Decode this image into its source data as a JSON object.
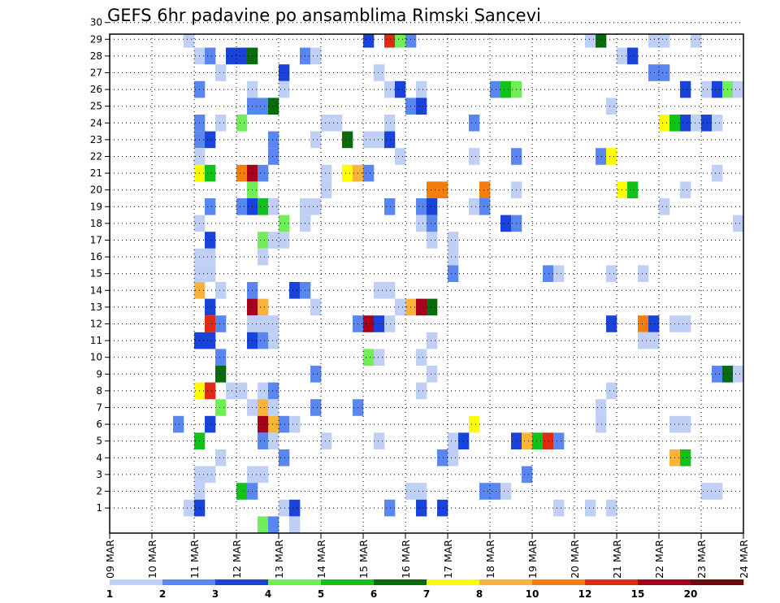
{
  "chart_data": {
    "type": "heatmap",
    "title": "GEFS 6hr padavine po ansamblima Rimski Sancevi",
    "x_ticks": [
      "09 MAR",
      "10 MAR",
      "11 MAR",
      "12 MAR",
      "13 MAR",
      "14 MAR",
      "15 MAR",
      "16 MAR",
      "17 MAR",
      "18 MAR",
      "19 MAR",
      "20 MAR",
      "21 MAR",
      "22 MAR",
      "23 MAR",
      "24 MAR"
    ],
    "y_ticks": [
      "1",
      "2",
      "3",
      "4",
      "5",
      "6",
      "7",
      "8",
      "9",
      "10",
      "11",
      "12",
      "13",
      "14",
      "15",
      "16",
      "17",
      "18",
      "19",
      "20",
      "21",
      "22",
      "23",
      "24",
      "25",
      "26",
      "27",
      "28",
      "29",
      "30"
    ],
    "x_steps_per_day": 4,
    "xlim": [
      0,
      60
    ],
    "ylim": [
      0,
      30
    ],
    "grid": true,
    "colorbar": {
      "labels": [
        "1",
        "2",
        "3",
        "4",
        "5",
        "6",
        "7",
        "8",
        "10",
        "12",
        "15",
        "20"
      ],
      "colors": [
        "#bfcff5",
        "#5a87ef",
        "#1a43d9",
        "#70ee58",
        "#11c21a",
        "#0a6b0d",
        "#fefe00",
        "#fbb33c",
        "#f47d0c",
        "#e02b14",
        "#a8001c",
        "#6b0a0a"
      ]
    },
    "cells": [
      {
        "m": 30,
        "t": [
          [
            9,
            7
          ],
          [
            45,
            2
          ],
          [
            46,
            6
          ],
          [
            47,
            1
          ],
          [
            48,
            2
          ],
          [
            49,
            2
          ],
          [
            50,
            4
          ],
          [
            51,
            5
          ],
          [
            52,
            3
          ],
          [
            53,
            2
          ],
          [
            54,
            1
          ],
          [
            55,
            1
          ]
        ]
      },
      {
        "m": 29,
        "t": [
          [
            7,
            1
          ],
          [
            24,
            3
          ],
          [
            26,
            10
          ],
          [
            27,
            4
          ],
          [
            28,
            2
          ],
          [
            45,
            1
          ],
          [
            46,
            6
          ],
          [
            51,
            1
          ],
          [
            52,
            1
          ]
        ],
        "extra": [
          [
            55,
            1
          ]
        ]
      },
      {
        "m": 28,
        "t": [
          [
            8,
            1
          ],
          [
            9,
            2
          ],
          [
            11,
            3
          ],
          [
            12,
            3
          ],
          [
            13,
            6
          ],
          [
            18,
            2
          ],
          [
            19,
            1
          ],
          [
            48,
            1
          ],
          [
            49,
            3
          ]
        ]
      },
      {
        "m": 27,
        "t": [
          [
            10,
            1
          ],
          [
            16,
            3
          ],
          [
            25,
            1
          ],
          [
            51,
            2
          ],
          [
            52,
            2
          ]
        ]
      },
      {
        "m": 26,
        "t": [
          [
            8,
            2
          ],
          [
            13,
            1
          ],
          [
            16,
            1
          ],
          [
            26,
            1
          ],
          [
            27,
            3
          ],
          [
            29,
            1
          ],
          [
            36,
            2
          ],
          [
            37,
            5
          ],
          [
            38,
            4
          ],
          [
            54,
            3
          ],
          [
            56,
            1
          ],
          [
            57,
            3
          ],
          [
            58,
            4
          ],
          [
            59,
            1
          ]
        ]
      },
      {
        "m": 25,
        "t": [
          [
            13,
            2
          ],
          [
            14,
            2
          ],
          [
            15,
            6
          ],
          [
            28,
            2
          ],
          [
            29,
            3
          ],
          [
            47,
            1
          ]
        ]
      },
      {
        "m": 24,
        "t": [
          [
            8,
            2
          ],
          [
            10,
            1
          ],
          [
            12,
            4
          ],
          [
            20,
            1
          ],
          [
            21,
            1
          ],
          [
            26,
            1
          ],
          [
            34,
            2
          ],
          [
            52,
            7
          ],
          [
            53,
            5
          ],
          [
            54,
            3
          ],
          [
            55,
            1
          ],
          [
            56,
            3
          ],
          [
            57,
            1
          ]
        ]
      },
      {
        "m": 23,
        "t": [
          [
            8,
            2
          ],
          [
            9,
            3
          ],
          [
            15,
            2
          ],
          [
            19,
            1
          ],
          [
            22,
            6
          ],
          [
            24,
            1
          ],
          [
            25,
            1
          ],
          [
            26,
            3
          ]
        ]
      },
      {
        "m": 22,
        "t": [
          [
            8,
            1
          ],
          [
            15,
            2
          ],
          [
            27,
            1
          ],
          [
            34,
            1
          ],
          [
            38,
            2
          ],
          [
            46,
            2
          ],
          [
            47,
            7
          ]
        ]
      },
      {
        "m": 21,
        "t": [
          [
            8,
            7
          ],
          [
            9,
            5
          ],
          [
            12,
            9
          ],
          [
            13,
            11
          ],
          [
            14,
            2
          ],
          [
            20,
            1
          ],
          [
            22,
            7
          ],
          [
            23,
            8
          ],
          [
            24,
            2
          ],
          [
            57,
            1
          ]
        ]
      },
      {
        "m": 20,
        "t": [
          [
            13,
            4
          ],
          [
            20,
            1
          ],
          [
            30,
            9
          ],
          [
            31,
            9
          ],
          [
            35,
            9
          ],
          [
            38,
            1
          ],
          [
            48,
            7
          ],
          [
            49,
            5
          ],
          [
            54,
            1
          ]
        ]
      },
      {
        "m": 19,
        "t": [
          [
            9,
            2
          ],
          [
            12,
            2
          ],
          [
            13,
            3
          ],
          [
            14,
            5
          ],
          [
            15,
            1
          ],
          [
            18,
            1
          ],
          [
            19,
            1
          ],
          [
            26,
            2
          ],
          [
            29,
            2
          ],
          [
            30,
            3
          ],
          [
            34,
            1
          ],
          [
            35,
            2
          ],
          [
            52,
            1
          ]
        ]
      },
      {
        "m": 18,
        "t": [
          [
            8,
            1
          ],
          [
            16,
            4
          ],
          [
            18,
            1
          ],
          [
            29,
            1
          ],
          [
            30,
            2
          ],
          [
            37,
            3
          ],
          [
            38,
            2
          ],
          [
            59,
            1
          ]
        ]
      },
      {
        "m": 17,
        "t": [
          [
            9,
            3
          ],
          [
            14,
            4
          ],
          [
            15,
            1
          ],
          [
            16,
            1
          ],
          [
            30,
            1
          ],
          [
            32,
            1
          ]
        ]
      },
      {
        "m": 16,
        "t": [
          [
            8,
            1
          ],
          [
            9,
            1
          ],
          [
            14,
            1
          ],
          [
            32,
            1
          ]
        ]
      },
      {
        "m": 15,
        "t": [
          [
            8,
            1
          ],
          [
            9,
            1
          ],
          [
            32,
            2
          ],
          [
            41,
            2
          ],
          [
            42,
            1
          ],
          [
            47,
            1
          ],
          [
            50,
            1
          ]
        ]
      },
      {
        "m": 14,
        "t": [
          [
            8,
            8
          ],
          [
            10,
            1
          ],
          [
            13,
            2
          ],
          [
            17,
            3
          ],
          [
            18,
            2
          ],
          [
            25,
            1
          ],
          [
            26,
            1
          ]
        ]
      },
      {
        "m": 13,
        "t": [
          [
            9,
            3
          ],
          [
            13,
            11
          ],
          [
            14,
            8
          ],
          [
            19,
            1
          ],
          [
            27,
            1
          ],
          [
            28,
            8
          ],
          [
            29,
            11
          ],
          [
            30,
            6
          ]
        ]
      },
      {
        "m": 12,
        "t": [
          [
            9,
            10
          ],
          [
            10,
            2
          ],
          [
            13,
            1
          ],
          [
            14,
            1
          ],
          [
            15,
            1
          ],
          [
            23,
            2
          ],
          [
            24,
            11
          ],
          [
            25,
            3
          ],
          [
            26,
            1
          ],
          [
            47,
            3
          ],
          [
            50,
            9
          ],
          [
            51,
            3
          ],
          [
            53,
            1
          ],
          [
            54,
            1
          ]
        ]
      },
      {
        "m": 11,
        "t": [
          [
            8,
            3
          ],
          [
            9,
            3
          ],
          [
            13,
            3
          ],
          [
            14,
            2
          ],
          [
            15,
            1
          ],
          [
            30,
            1
          ],
          [
            50,
            1
          ],
          [
            51,
            1
          ]
        ]
      },
      {
        "m": 10,
        "t": [
          [
            10,
            2
          ],
          [
            24,
            4
          ],
          [
            25,
            1
          ],
          [
            29,
            1
          ]
        ]
      },
      {
        "m": 9,
        "t": [
          [
            10,
            6
          ],
          [
            19,
            2
          ],
          [
            30,
            1
          ],
          [
            57,
            2
          ],
          [
            58,
            6
          ],
          [
            59,
            1
          ],
          [
            60,
            1
          ]
        ]
      },
      {
        "m": 8,
        "t": [
          [
            8,
            7
          ],
          [
            9,
            10
          ],
          [
            11,
            1
          ],
          [
            12,
            1
          ],
          [
            14,
            1
          ],
          [
            15,
            2
          ],
          [
            29,
            1
          ],
          [
            47,
            1
          ]
        ]
      },
      {
        "m": 7,
        "t": [
          [
            10,
            4
          ],
          [
            13,
            1
          ],
          [
            14,
            8
          ],
          [
            15,
            1
          ],
          [
            19,
            2
          ],
          [
            23,
            2
          ],
          [
            46,
            1
          ]
        ]
      },
      {
        "m": 6,
        "t": [
          [
            6,
            2
          ],
          [
            9,
            3
          ],
          [
            14,
            11
          ],
          [
            15,
            8
          ],
          [
            16,
            2
          ],
          [
            17,
            1
          ],
          [
            34,
            7
          ],
          [
            46,
            1
          ],
          [
            53,
            1
          ],
          [
            54,
            1
          ]
        ]
      },
      {
        "m": 5,
        "t": [
          [
            8,
            5
          ],
          [
            14,
            2
          ],
          [
            15,
            1
          ],
          [
            20,
            1
          ],
          [
            25,
            1
          ],
          [
            32,
            1
          ],
          [
            33,
            3
          ],
          [
            38,
            3
          ],
          [
            39,
            8
          ],
          [
            40,
            5
          ],
          [
            41,
            10
          ],
          [
            42,
            2
          ]
        ]
      },
      {
        "m": 4,
        "t": [
          [
            10,
            1
          ],
          [
            16,
            2
          ],
          [
            31,
            2
          ],
          [
            32,
            1
          ],
          [
            53,
            8
          ],
          [
            54,
            5
          ]
        ]
      },
      {
        "m": 3,
        "t": [
          [
            8,
            1
          ],
          [
            9,
            1
          ],
          [
            13,
            1
          ],
          [
            14,
            1
          ],
          [
            39,
            2
          ]
        ]
      },
      {
        "m": 2,
        "t": [
          [
            8,
            1
          ],
          [
            12,
            5
          ],
          [
            13,
            2
          ],
          [
            28,
            1
          ],
          [
            29,
            1
          ],
          [
            35,
            2
          ],
          [
            36,
            2
          ],
          [
            37,
            1
          ],
          [
            56,
            1
          ],
          [
            57,
            1
          ]
        ]
      },
      {
        "m": 1,
        "t": [
          [
            7,
            1
          ],
          [
            8,
            3
          ],
          [
            16,
            1
          ],
          [
            17,
            3
          ],
          [
            26,
            2
          ],
          [
            29,
            3
          ],
          [
            31,
            3
          ],
          [
            42,
            1
          ],
          [
            45,
            1
          ],
          [
            47,
            1
          ]
        ]
      },
      {
        "m": 0,
        "t": [
          [
            14,
            4
          ],
          [
            15,
            2
          ],
          [
            17,
            1
          ]
        ]
      }
    ]
  }
}
